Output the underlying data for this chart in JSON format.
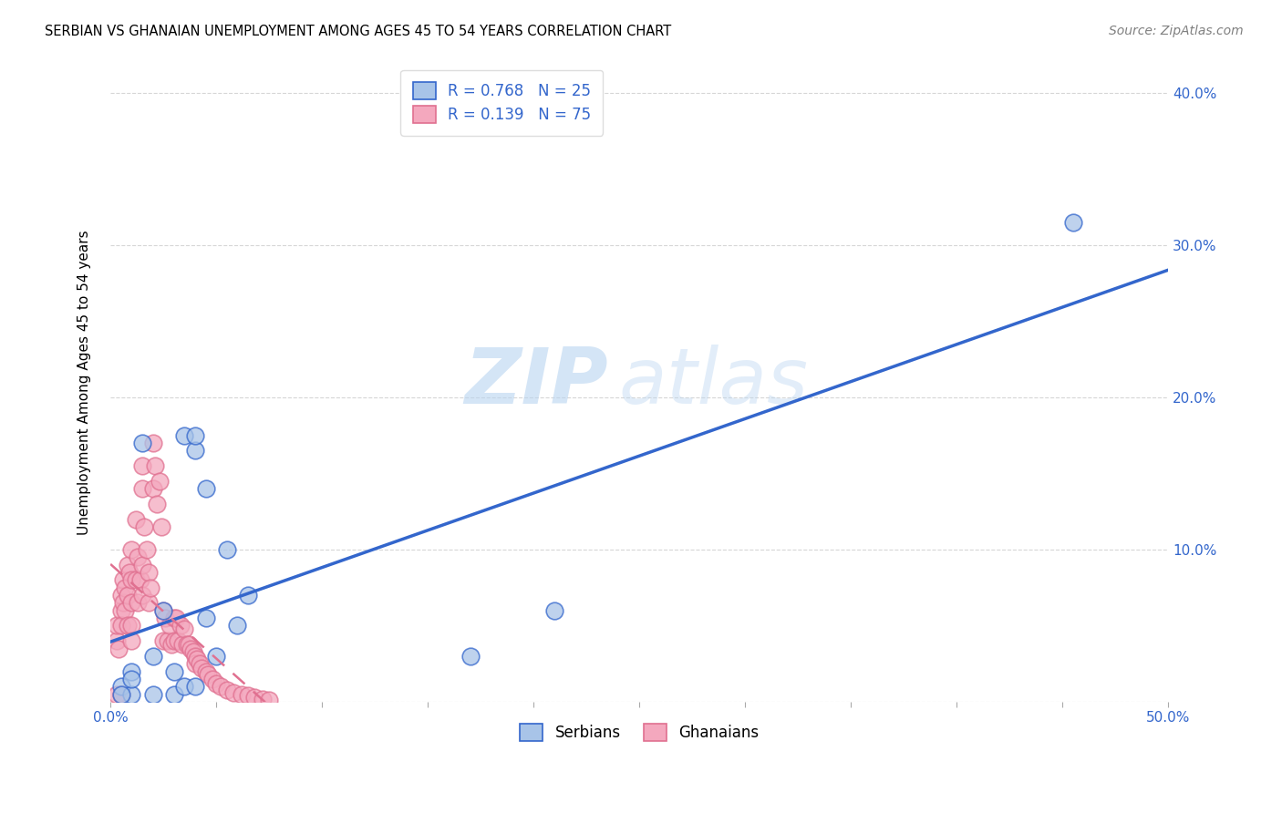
{
  "title": "SERBIAN VS GHANAIAN UNEMPLOYMENT AMONG AGES 45 TO 54 YEARS CORRELATION CHART",
  "source": "Source: ZipAtlas.com",
  "ylabel": "Unemployment Among Ages 45 to 54 years",
  "xlim": [
    0.0,
    0.5
  ],
  "ylim": [
    0.0,
    0.42
  ],
  "xticks": [
    0.0,
    0.05,
    0.1,
    0.15,
    0.2,
    0.25,
    0.3,
    0.35,
    0.4,
    0.45,
    0.5
  ],
  "xtick_labels": [
    "0.0%",
    "",
    "",
    "",
    "",
    "",
    "",
    "",
    "",
    "",
    "50.0%"
  ],
  "yticks": [
    0.0,
    0.1,
    0.2,
    0.3,
    0.4
  ],
  "ytick_labels_right": [
    "",
    "10.0%",
    "20.0%",
    "30.0%",
    "40.0%"
  ],
  "serbian_color": "#a8c4e8",
  "ghanaian_color": "#f4a8be",
  "serbian_line_color": "#3366cc",
  "ghanaian_line_color": "#e07090",
  "R_serbian": 0.768,
  "N_serbian": 25,
  "R_ghanaian": 0.139,
  "N_ghanaian": 75,
  "watermark_zip": "ZIP",
  "watermark_atlas": "atlas",
  "legend_serbian_label": "Serbians",
  "legend_ghanaian_label": "Ghanaians",
  "serbian_x": [
    0.005,
    0.01,
    0.01,
    0.015,
    0.02,
    0.02,
    0.025,
    0.03,
    0.03,
    0.035,
    0.035,
    0.04,
    0.04,
    0.04,
    0.045,
    0.045,
    0.05,
    0.055,
    0.06,
    0.065,
    0.17,
    0.21,
    0.455,
    0.005,
    0.01
  ],
  "serbian_y": [
    0.01,
    0.005,
    0.02,
    0.17,
    0.03,
    0.005,
    0.06,
    0.005,
    0.02,
    0.175,
    0.01,
    0.165,
    0.175,
    0.01,
    0.055,
    0.14,
    0.03,
    0.1,
    0.05,
    0.07,
    0.03,
    0.06,
    0.315,
    0.005,
    0.015
  ],
  "ghanaian_x": [
    0.003,
    0.003,
    0.004,
    0.005,
    0.005,
    0.005,
    0.006,
    0.006,
    0.007,
    0.007,
    0.008,
    0.008,
    0.008,
    0.009,
    0.01,
    0.01,
    0.01,
    0.01,
    0.01,
    0.012,
    0.012,
    0.013,
    0.013,
    0.014,
    0.015,
    0.015,
    0.015,
    0.015,
    0.016,
    0.017,
    0.018,
    0.018,
    0.019,
    0.02,
    0.02,
    0.021,
    0.022,
    0.023,
    0.024,
    0.025,
    0.025,
    0.026,
    0.027,
    0.028,
    0.029,
    0.03,
    0.03,
    0.031,
    0.032,
    0.033,
    0.034,
    0.035,
    0.036,
    0.037,
    0.038,
    0.039,
    0.04,
    0.04,
    0.041,
    0.042,
    0.043,
    0.045,
    0.046,
    0.048,
    0.05,
    0.052,
    0.055,
    0.058,
    0.062,
    0.065,
    0.068,
    0.072,
    0.075,
    0.003,
    0.005
  ],
  "ghanaian_y": [
    0.04,
    0.05,
    0.035,
    0.06,
    0.07,
    0.05,
    0.08,
    0.065,
    0.06,
    0.075,
    0.07,
    0.09,
    0.05,
    0.085,
    0.1,
    0.08,
    0.065,
    0.05,
    0.04,
    0.12,
    0.08,
    0.095,
    0.065,
    0.08,
    0.155,
    0.14,
    0.09,
    0.07,
    0.115,
    0.1,
    0.085,
    0.065,
    0.075,
    0.17,
    0.14,
    0.155,
    0.13,
    0.145,
    0.115,
    0.06,
    0.04,
    0.055,
    0.04,
    0.05,
    0.038,
    0.055,
    0.04,
    0.055,
    0.04,
    0.05,
    0.038,
    0.048,
    0.038,
    0.038,
    0.035,
    0.033,
    0.03,
    0.025,
    0.028,
    0.025,
    0.022,
    0.02,
    0.018,
    0.015,
    0.012,
    0.01,
    0.008,
    0.006,
    0.005,
    0.004,
    0.003,
    0.002,
    0.001,
    0.005,
    0.005
  ]
}
